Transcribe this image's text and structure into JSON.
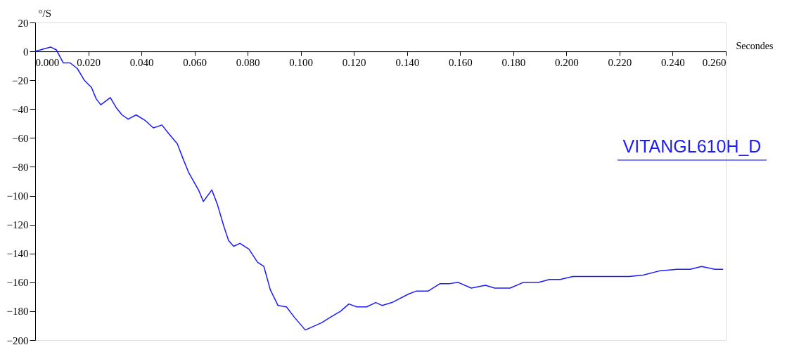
{
  "chart_data": {
    "type": "line",
    "xlabel": "Secondes",
    "ylabel": "°/S",
    "legend": "right",
    "grid": false,
    "marker": "none",
    "line_style": "solid",
    "xlim": [
      0,
      0.26
    ],
    "ylim": [
      -200,
      20
    ],
    "xticks": [
      {
        "value": 0,
        "label": "0.000"
      },
      {
        "value": 0.02,
        "label": "0.020"
      },
      {
        "value": 0.04,
        "label": "0.040"
      },
      {
        "value": 0.06,
        "label": "0.060"
      },
      {
        "value": 0.08,
        "label": "0.080"
      },
      {
        "value": 0.1,
        "label": "0.100"
      },
      {
        "value": 0.12,
        "label": "0.120"
      },
      {
        "value": 0.14,
        "label": "0.140"
      },
      {
        "value": 0.16,
        "label": "0.160"
      },
      {
        "value": 0.18,
        "label": "0.180"
      },
      {
        "value": 0.2,
        "label": "0.200"
      },
      {
        "value": 0.22,
        "label": "0.220"
      },
      {
        "value": 0.24,
        "label": "0.240"
      },
      {
        "value": 0.26,
        "label": "0.260"
      }
    ],
    "yticks": [
      20,
      0,
      -20,
      -40,
      -60,
      -80,
      -100,
      -120,
      -140,
      -160,
      -180,
      -200
    ],
    "series": [
      {
        "name": "VITANGL610H_D",
        "color": "#1a1aff",
        "x": [
          0,
          0.0058,
          0.008,
          0.0106,
          0.0132,
          0.0159,
          0.0185,
          0.0212,
          0.023,
          0.0247,
          0.0283,
          0.0305,
          0.0327,
          0.035,
          0.038,
          0.0415,
          0.0445,
          0.0477,
          0.0503,
          0.0535,
          0.0556,
          0.0578,
          0.0615,
          0.0633,
          0.0665,
          0.0686,
          0.071,
          0.0728,
          0.0747,
          0.0771,
          0.0805,
          0.0837,
          0.0861,
          0.0885,
          0.0914,
          0.0946,
          0.0975,
          0.1017,
          0.1078,
          0.1113,
          0.115,
          0.1181,
          0.1211,
          0.1248,
          0.1282,
          0.1306,
          0.1343,
          0.1407,
          0.1436,
          0.148,
          0.1523,
          0.1558,
          0.1592,
          0.1642,
          0.1695,
          0.173,
          0.1788,
          0.1838,
          0.1897,
          0.1936,
          0.1976,
          0.2024,
          0.2082,
          0.218,
          0.2236,
          0.2289,
          0.2352,
          0.2416,
          0.2466,
          0.2509,
          0.2559,
          0.259
        ],
        "values": [
          0,
          3,
          1,
          -8,
          -8,
          -12,
          -20,
          -25,
          -33,
          -37,
          -32,
          -39,
          -44,
          -47,
          -44,
          -48,
          -53,
          -51,
          -57,
          -64,
          -74,
          -84,
          -96,
          -104,
          -96,
          -106,
          -121,
          -131,
          -135,
          -133,
          -137,
          -146,
          -149,
          -165,
          -176,
          -177,
          -184,
          -193,
          -188,
          -184,
          -180,
          -175,
          -177,
          -177,
          -174,
          -176,
          -174,
          -168,
          -166,
          -166,
          -161,
          -161,
          -160,
          -164,
          -162,
          -164,
          -164,
          -160,
          -160,
          -158,
          -158,
          -156,
          -156,
          -156,
          -156,
          -155,
          -152,
          -151,
          -151,
          -149,
          -151,
          -151
        ]
      }
    ]
  }
}
